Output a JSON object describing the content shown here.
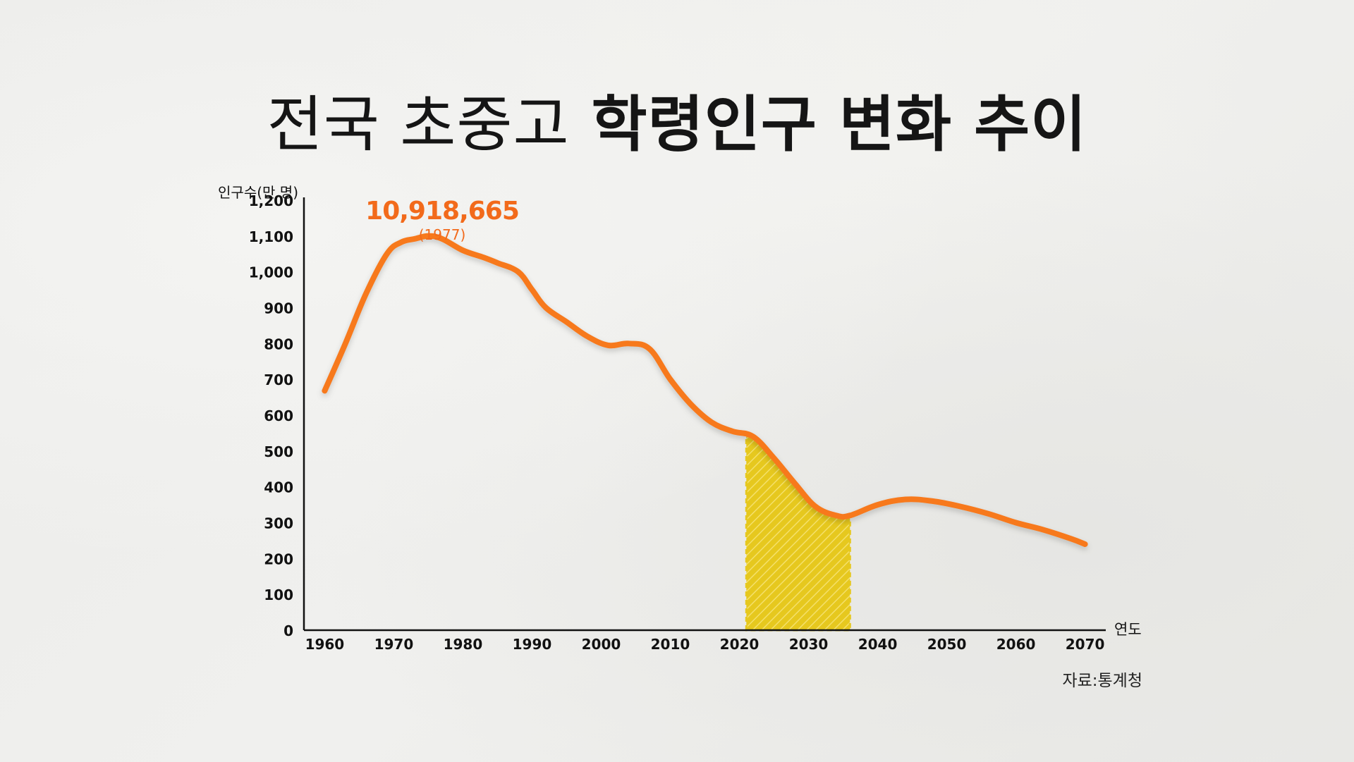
{
  "title": {
    "part1": "전국 초중고",
    "part2": "학령인구 변화 추이"
  },
  "source": "자료:통계청",
  "colors": {
    "line": "#f7791d",
    "highlight": "#e6c81e",
    "axis": "#111111",
    "text": "#111111",
    "peak": "#f26a1b"
  },
  "chart_data": {
    "type": "line",
    "ylabel": "인구수(만 명)",
    "xlabel": "연도",
    "xlim": [
      1957,
      2073
    ],
    "ylim": [
      0,
      1200
    ],
    "x_ticks": [
      1960,
      1970,
      1980,
      1990,
      2000,
      2010,
      2020,
      2030,
      2040,
      2050,
      2060,
      2070
    ],
    "y_ticks": [
      0,
      100,
      200,
      300,
      400,
      500,
      600,
      700,
      800,
      900,
      1000,
      1100,
      1200
    ],
    "y_tick_labels": [
      "0",
      "100",
      "200",
      "300",
      "400",
      "500",
      "600",
      "700",
      "800",
      "900",
      "1,000",
      "1,100",
      "1,200"
    ],
    "x": [
      1960,
      1963,
      1966,
      1969,
      1971,
      1973,
      1975,
      1977,
      1980,
      1983,
      1985,
      1988,
      1990,
      1992,
      1995,
      1998,
      2001,
      2004,
      2007,
      2010,
      2013,
      2016,
      2019,
      2022,
      2025,
      2028,
      2031,
      2034,
      2036,
      2040,
      2044,
      2048,
      2052,
      2056,
      2060,
      2064,
      2068,
      2070
    ],
    "y": [
      668,
      800,
      940,
      1050,
      1082,
      1092,
      1100,
      1092,
      1060,
      1040,
      1025,
      1000,
      950,
      900,
      860,
      820,
      795,
      800,
      785,
      700,
      630,
      580,
      555,
      540,
      480,
      410,
      345,
      320,
      320,
      350,
      365,
      360,
      345,
      325,
      300,
      280,
      255,
      240
    ],
    "highlight_range": [
      2021,
      2036
    ],
    "annotations": [
      {
        "value": "10,918,665",
        "year_label": "(1977)",
        "x": 1977,
        "y": 1092
      }
    ]
  }
}
